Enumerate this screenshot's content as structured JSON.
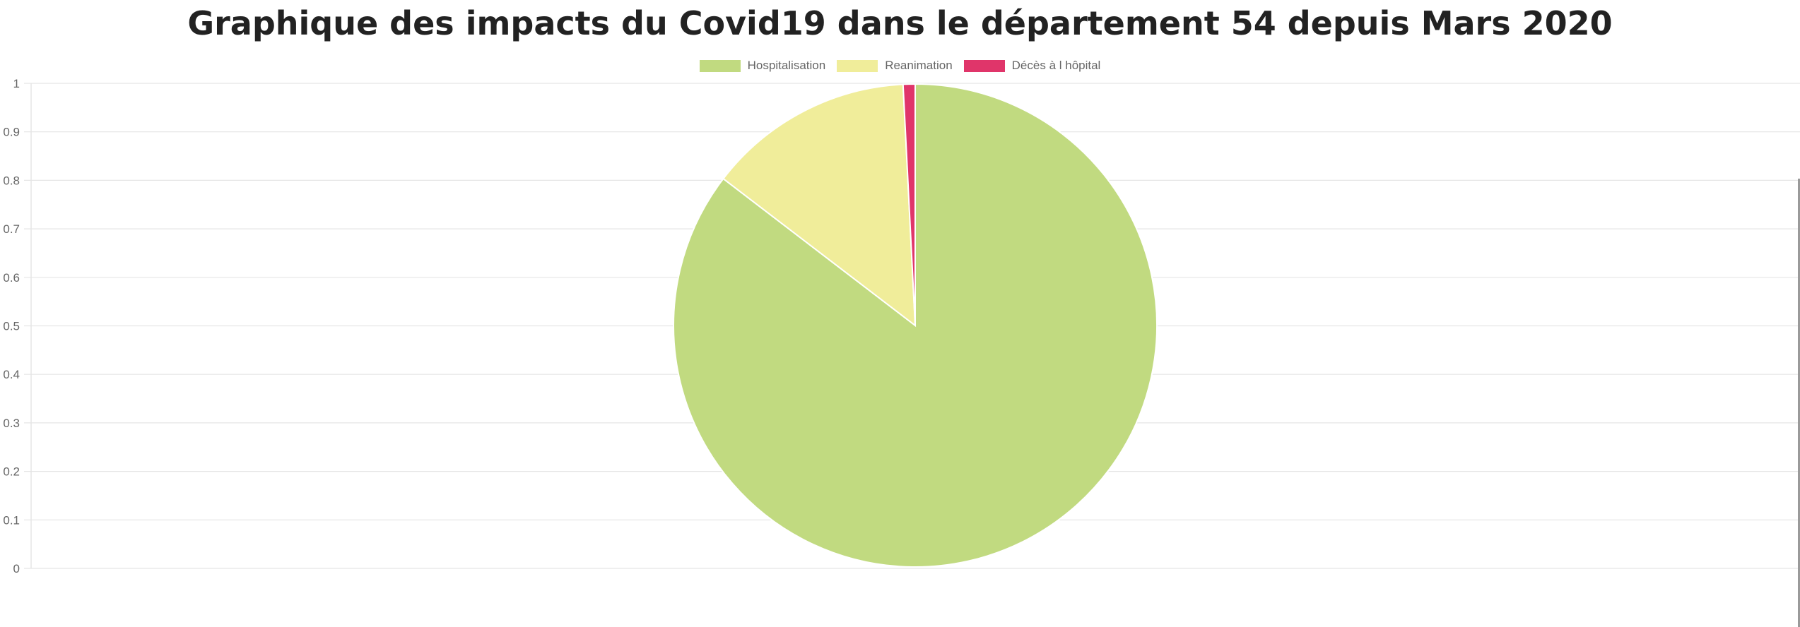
{
  "chart_data": {
    "type": "pie",
    "title": "Graphique des impacts du Covid19 dans le département 54 depuis Mars 2020",
    "categories": [
      "Hospitalisation",
      "Reanimation",
      "Décès à l hôpital"
    ],
    "values": [
      85.4,
      13.8,
      0.8
    ],
    "colors": [
      "#c1da80",
      "#f0ed9a",
      "#e0356a"
    ],
    "slice_border_color": "#ffffff",
    "legend_position": "top",
    "y_ticks": [
      "0",
      "0.1",
      "0.2",
      "0.3",
      "0.4",
      "0.5",
      "0.6",
      "0.7",
      "0.8",
      "0.9",
      "1"
    ],
    "ylim": [
      0,
      1
    ],
    "grid": true,
    "grid_color": "#e5e5e5"
  }
}
